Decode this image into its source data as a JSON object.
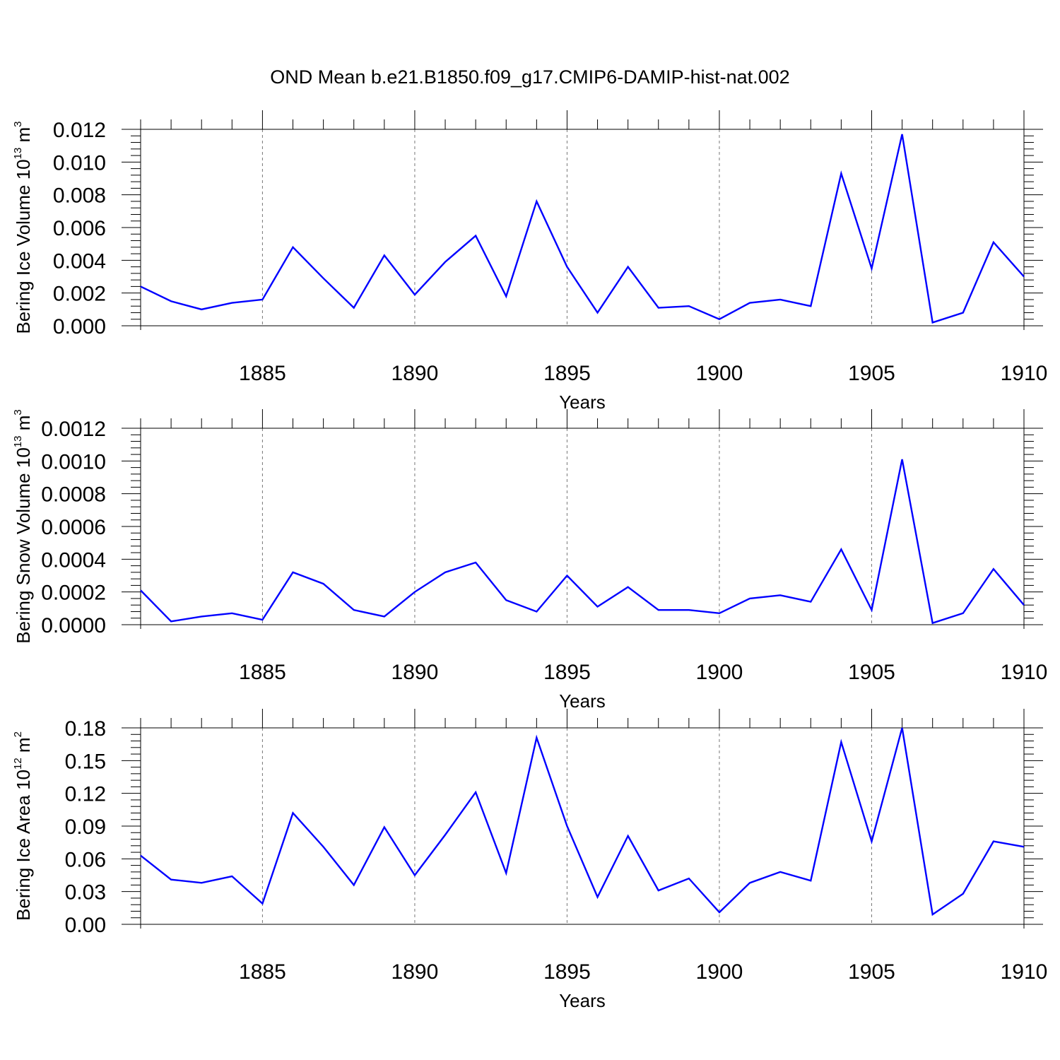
{
  "title": "OND Mean b.e21.B1850.f09_g17.CMIP6-DAMIP-hist-nat.002",
  "colors": {
    "series": "#0000ff",
    "axis": "#000000",
    "grid": "#777777"
  },
  "chart_data": [
    {
      "type": "line",
      "ylabel": {
        "text": "Bering Ice Volume 10",
        "exponent": "13",
        "unit": " m",
        "unit_exponent": "3"
      },
      "xlabel": "Years",
      "xlim": [
        1881,
        1910
      ],
      "ylim": [
        0,
        0.012
      ],
      "yticks": [
        0,
        0.002,
        0.004,
        0.006,
        0.008,
        0.01,
        0.012
      ],
      "ytick_labels": [
        "0.000",
        "0.002",
        "0.004",
        "0.006",
        "0.008",
        "0.010",
        "0.012"
      ],
      "xticks": [
        1885,
        1890,
        1895,
        1900,
        1905,
        1910
      ],
      "xtick_labels": [
        "1885",
        "1890",
        "1895",
        "1900",
        "1905",
        "1910"
      ],
      "grid": "vertical dashed at major x ticks",
      "x": [
        1881,
        1882,
        1883,
        1884,
        1885,
        1886,
        1887,
        1888,
        1889,
        1890,
        1891,
        1892,
        1893,
        1894,
        1895,
        1896,
        1897,
        1898,
        1899,
        1900,
        1901,
        1902,
        1903,
        1904,
        1905,
        1906,
        1907,
        1908,
        1909,
        1910
      ],
      "series": [
        {
          "name": "Bering Ice Volume",
          "values": [
            0.0024,
            0.0015,
            0.001,
            0.0014,
            0.0016,
            0.0048,
            0.0029,
            0.0011,
            0.0043,
            0.0019,
            0.0039,
            0.0055,
            0.0018,
            0.0076,
            0.0036,
            0.0008,
            0.0036,
            0.0011,
            0.0012,
            0.0004,
            0.0014,
            0.0016,
            0.0012,
            0.0093,
            0.0035,
            0.0117,
            0.0002,
            0.0008,
            0.0051,
            0.003
          ]
        }
      ]
    },
    {
      "type": "line",
      "ylabel": {
        "text": "Bering Snow Volume 10",
        "exponent": "13",
        "unit": " m",
        "unit_exponent": "3"
      },
      "xlabel": "Years",
      "xlim": [
        1881,
        1910
      ],
      "ylim": [
        0,
        0.0012
      ],
      "yticks": [
        0,
        0.0002,
        0.0004,
        0.0006,
        0.0008,
        0.001,
        0.0012
      ],
      "ytick_labels": [
        "0.0000",
        "0.0002",
        "0.0004",
        "0.0006",
        "0.0008",
        "0.0010",
        "0.0012"
      ],
      "xticks": [
        1885,
        1890,
        1895,
        1900,
        1905,
        1910
      ],
      "xtick_labels": [
        "1885",
        "1890",
        "1895",
        "1900",
        "1905",
        "1910"
      ],
      "grid": "vertical dashed at major x ticks",
      "x": [
        1881,
        1882,
        1883,
        1884,
        1885,
        1886,
        1887,
        1888,
        1889,
        1890,
        1891,
        1892,
        1893,
        1894,
        1895,
        1896,
        1897,
        1898,
        1899,
        1900,
        1901,
        1902,
        1903,
        1904,
        1905,
        1906,
        1907,
        1908,
        1909,
        1910
      ],
      "series": [
        {
          "name": "Bering Snow Volume",
          "values": [
            0.00021,
            2e-05,
            5e-05,
            7e-05,
            3e-05,
            0.00032,
            0.00025,
            9e-05,
            5e-05,
            0.0002,
            0.00032,
            0.00038,
            0.00015,
            8e-05,
            0.0003,
            0.00011,
            0.00023,
            9e-05,
            9e-05,
            7e-05,
            0.00016,
            0.00018,
            0.00014,
            0.00046,
            9e-05,
            0.00101,
            1e-05,
            7e-05,
            0.00034,
            0.00012
          ]
        }
      ]
    },
    {
      "type": "line",
      "ylabel": {
        "text": "Bering Ice Area 10",
        "exponent": "12",
        "unit": " m",
        "unit_exponent": "2"
      },
      "xlabel": "Years",
      "xlim": [
        1881,
        1910
      ],
      "ylim": [
        0,
        0.18
      ],
      "yticks": [
        0,
        0.03,
        0.06,
        0.09,
        0.12,
        0.15,
        0.18
      ],
      "ytick_labels": [
        "0.00",
        "0.03",
        "0.06",
        "0.09",
        "0.12",
        "0.15",
        "0.18"
      ],
      "xticks": [
        1885,
        1890,
        1895,
        1900,
        1905,
        1910
      ],
      "xtick_labels": [
        "1885",
        "1890",
        "1895",
        "1900",
        "1905",
        "1910"
      ],
      "grid": "vertical dashed at major x ticks",
      "x": [
        1881,
        1882,
        1883,
        1884,
        1885,
        1886,
        1887,
        1888,
        1889,
        1890,
        1891,
        1892,
        1893,
        1894,
        1895,
        1896,
        1897,
        1898,
        1899,
        1900,
        1901,
        1902,
        1903,
        1904,
        1905,
        1906,
        1907,
        1908,
        1909,
        1910
      ],
      "series": [
        {
          "name": "Bering Ice Area",
          "values": [
            0.063,
            0.041,
            0.038,
            0.044,
            0.019,
            0.102,
            0.071,
            0.036,
            0.089,
            0.045,
            0.082,
            0.121,
            0.047,
            0.171,
            0.09,
            0.025,
            0.081,
            0.031,
            0.042,
            0.011,
            0.038,
            0.048,
            0.04,
            0.167,
            0.076,
            0.18,
            0.009,
            0.028,
            0.076,
            0.071
          ]
        }
      ]
    }
  ]
}
